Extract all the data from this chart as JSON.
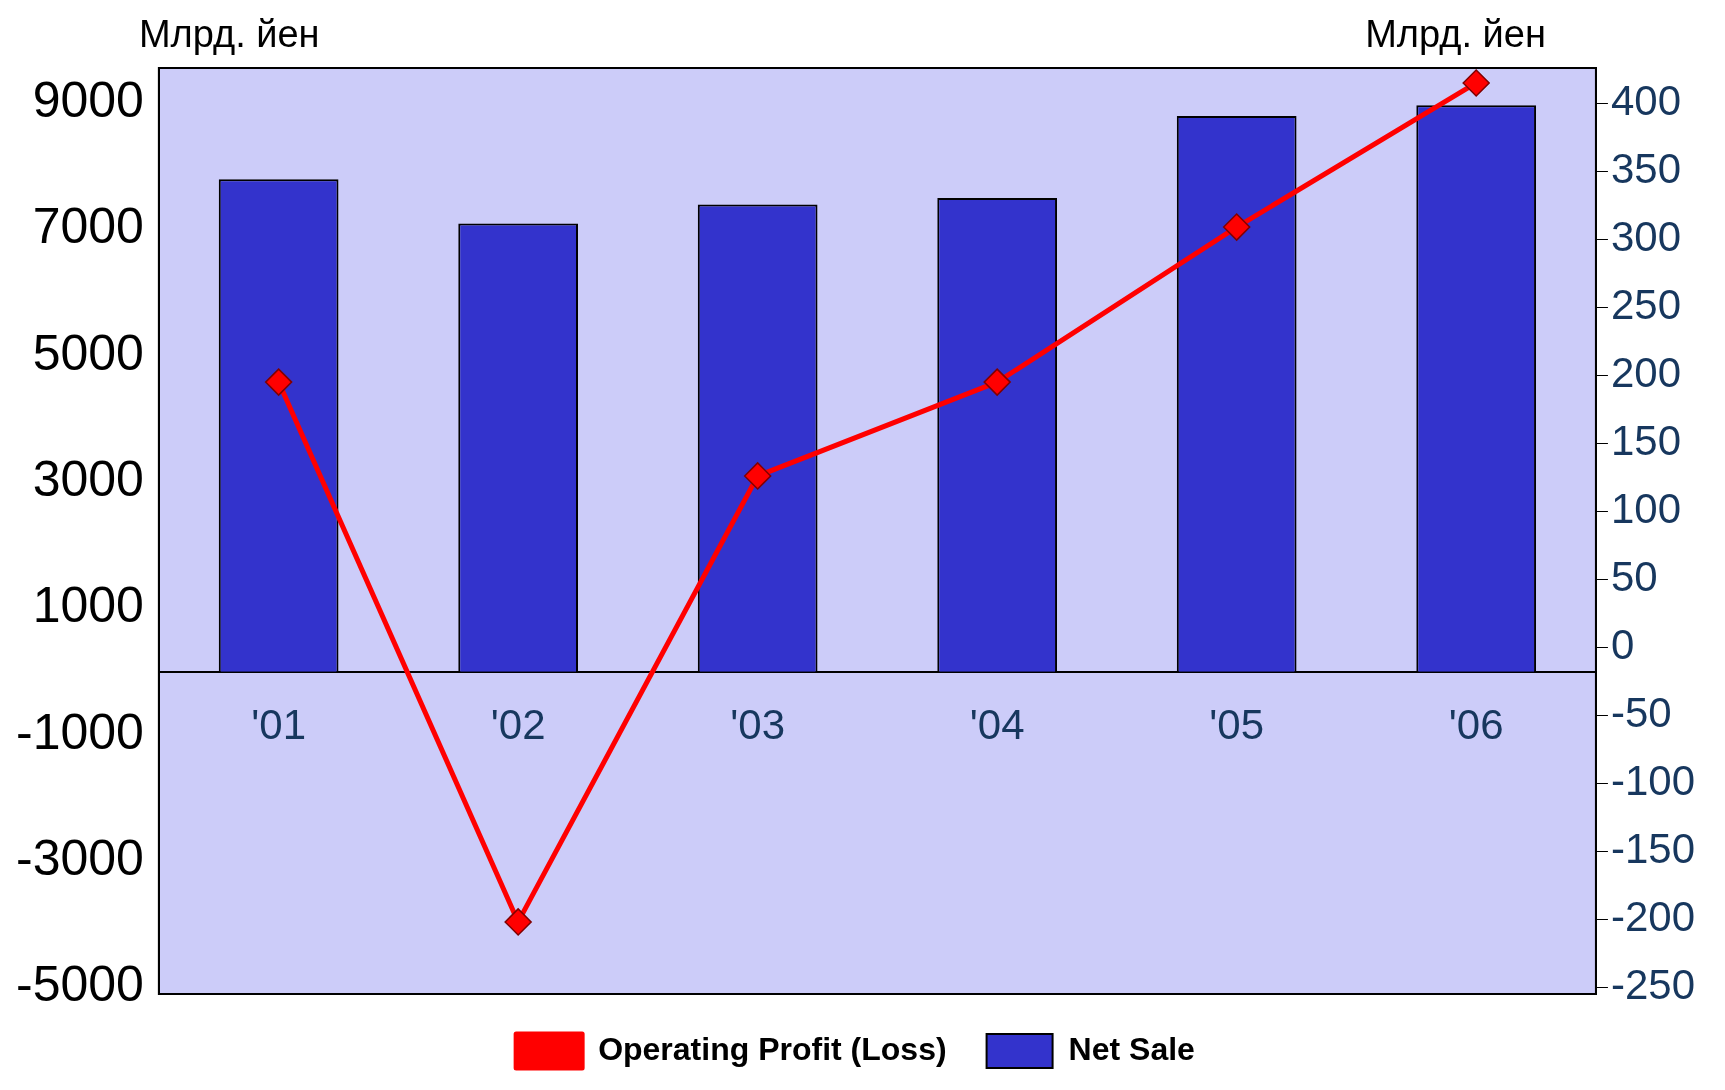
{
  "chart_data": {
    "type": "bar",
    "categories": [
      "'01",
      "'02",
      "'03",
      "'04",
      "'05",
      "'06"
    ],
    "series": [
      {
        "name": "Net Sale",
        "color": "#3333cc",
        "values": [
          7800,
          7100,
          7400,
          7500,
          8800,
          8970
        ]
      },
      {
        "name": "Operating Profit (Loss)",
        "type": "line",
        "axis": "y2",
        "color": "#ff0000",
        "values": [
          195,
          -202,
          126,
          195,
          309,
          415
        ]
      }
    ],
    "ylabel": "Млрд. йен",
    "y2label": "Млрд. йен",
    "ylim": [
      -5100,
      9560
    ],
    "yticks": [
      -5000,
      -3000,
      -1000,
      1000,
      3000,
      5000,
      7000,
      9000
    ],
    "y2lim": [
      -255,
      426
    ],
    "y2ticks": [
      -250,
      -200,
      -150,
      -100,
      -50,
      0,
      50,
      100,
      150,
      200,
      250,
      300,
      350,
      400
    ],
    "legend": "bottom",
    "marker": "diamond",
    "grid": false
  }
}
